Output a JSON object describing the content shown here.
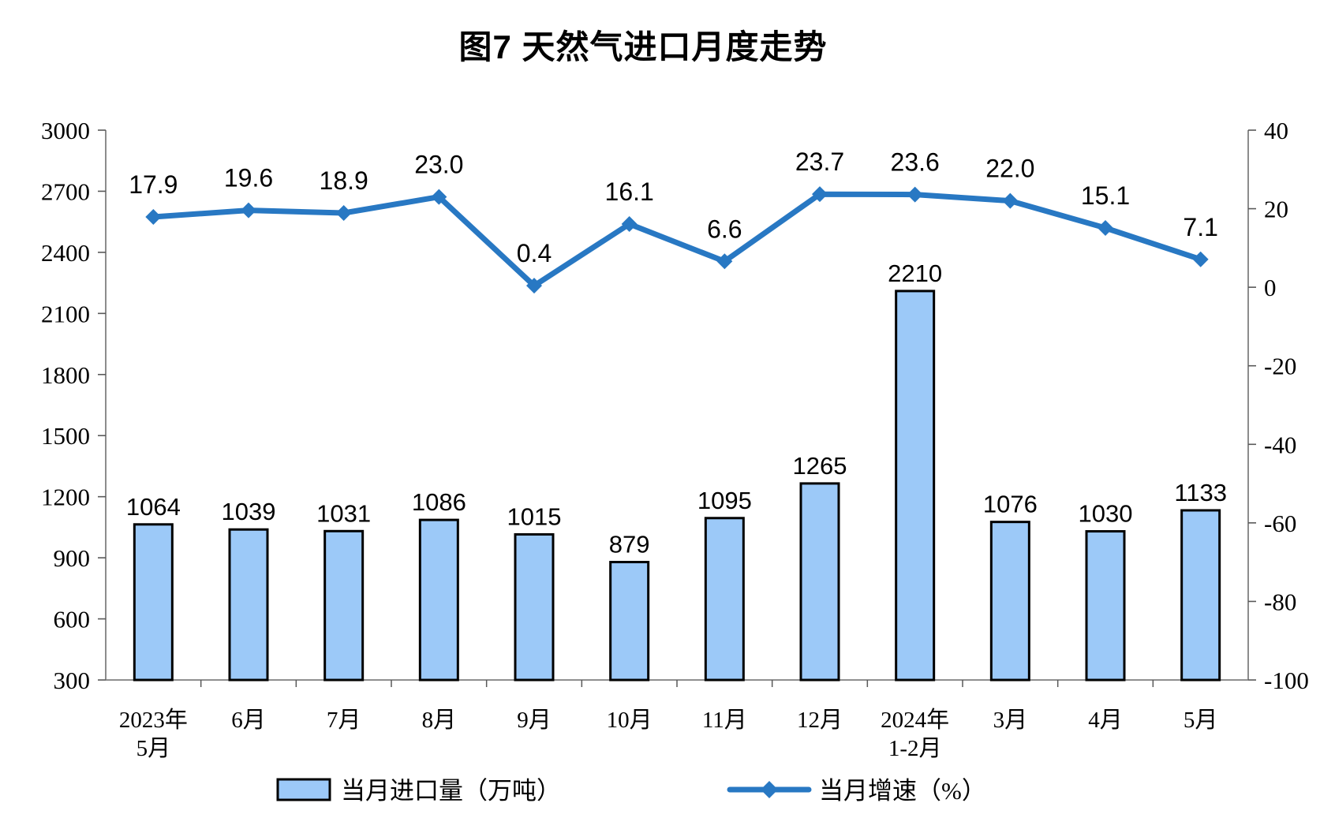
{
  "title": "图7 天然气进口月度走势",
  "colors": {
    "bar_fill": "#9CC9F8",
    "bar_stroke": "#000000",
    "line_color": "#2878C3",
    "axis_line": "#7F7F7F",
    "tick_mark": "#595959",
    "text": "#000000",
    "background": "#FFFFFF"
  },
  "chart_data": {
    "type": "bar+line",
    "title": "图7 天然气进口月度走势",
    "categories": [
      "2023年\n5月",
      "6月",
      "7月",
      "8月",
      "9月",
      "10月",
      "11月",
      "12月",
      "2024年\n1-2月",
      "3月",
      "4月",
      "5月"
    ],
    "bar_series": {
      "name": "当月进口量（万吨）",
      "axis": "left",
      "values": [
        1064,
        1039,
        1031,
        1086,
        1015,
        879,
        1095,
        1265,
        2210,
        1076,
        1030,
        1133
      ],
      "labels": [
        "1064",
        "1039",
        "1031",
        "1086",
        "1015",
        "879",
        "1095",
        "1265",
        "2210",
        "1076",
        "1030",
        "1133"
      ]
    },
    "line_series": {
      "name": "当月增速（%）",
      "axis": "right",
      "marker": "diamond",
      "values": [
        17.9,
        19.6,
        18.9,
        23.0,
        0.4,
        16.1,
        6.6,
        23.7,
        23.6,
        22.0,
        15.1,
        7.1
      ],
      "labels": [
        "17.9",
        "19.6",
        "18.9",
        "23.0",
        "0.4",
        "16.1",
        "6.6",
        "23.7",
        "23.6",
        "22.0",
        "15.1",
        "7.1"
      ]
    },
    "left_axis": {
      "min": 300,
      "max": 3000,
      "step": 300,
      "ticks": [
        "300",
        "600",
        "900",
        "1200",
        "1500",
        "1800",
        "2100",
        "2400",
        "2700",
        "3000"
      ]
    },
    "right_axis": {
      "min": -100,
      "max": 40,
      "step": 20,
      "ticks": [
        "-100",
        "-80",
        "-60",
        "-40",
        "-20",
        "0",
        "20",
        "40"
      ]
    },
    "grid": false,
    "legend_position": "bottom"
  }
}
